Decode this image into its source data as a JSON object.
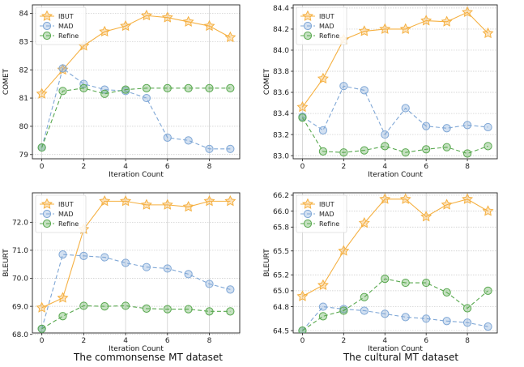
{
  "captions": {
    "left": "The commonsense MT dataset",
    "right": "The cultural MT dataset"
  },
  "colors": {
    "IBUT": "#f5b041",
    "MAD": "#7fa7d6",
    "Refine": "#58a84e"
  },
  "chart_data": [
    {
      "type": "line",
      "panel": "top-left",
      "xlabel": "Iteration Count",
      "ylabel": "COMET",
      "xlim": [
        -0.45,
        9.45
      ],
      "ylim": [
        78.85,
        84.3
      ],
      "xticks": [
        0,
        2,
        4,
        6,
        8
      ],
      "yticks": [
        79,
        80,
        81,
        82,
        83,
        84
      ],
      "legend": "top-left",
      "x": [
        0,
        1,
        2,
        3,
        4,
        5,
        6,
        7,
        8,
        9
      ],
      "series": [
        {
          "name": "IBUT",
          "values": [
            81.15,
            82.0,
            82.85,
            83.35,
            83.55,
            83.92,
            83.85,
            83.7,
            83.55,
            83.15
          ]
        },
        {
          "name": "MAD",
          "values": [
            79.25,
            82.05,
            81.5,
            81.3,
            81.25,
            81.0,
            79.6,
            79.5,
            79.2,
            79.2
          ]
        },
        {
          "name": "Refine",
          "values": [
            79.25,
            81.25,
            81.35,
            81.15,
            81.3,
            81.35,
            81.35,
            81.35,
            81.35,
            81.35
          ]
        }
      ]
    },
    {
      "type": "line",
      "panel": "top-right",
      "xlabel": "Iteration Count",
      "ylabel": "COMET",
      "xlim": [
        -0.45,
        9.45
      ],
      "ylim": [
        82.97,
        84.43
      ],
      "xticks": [
        0,
        2,
        4,
        6,
        8
      ],
      "yticks": [
        83.0,
        83.2,
        83.4,
        83.6,
        83.8,
        84.0,
        84.2,
        84.4
      ],
      "legend": "top-left",
      "x": [
        0,
        1,
        2,
        3,
        4,
        5,
        6,
        7,
        8,
        9
      ],
      "series": [
        {
          "name": "IBUT",
          "values": [
            83.46,
            83.73,
            84.1,
            84.18,
            84.2,
            84.2,
            84.28,
            84.27,
            84.36,
            84.16
          ]
        },
        {
          "name": "MAD",
          "values": [
            83.37,
            83.24,
            83.66,
            83.62,
            83.2,
            83.45,
            83.28,
            83.26,
            83.29,
            83.27
          ]
        },
        {
          "name": "Refine",
          "values": [
            83.36,
            83.04,
            83.03,
            83.05,
            83.09,
            83.03,
            83.06,
            83.08,
            83.02,
            83.09
          ]
        }
      ]
    },
    {
      "type": "line",
      "panel": "bottom-left",
      "xlabel": "Iteration Count",
      "ylabel": "BLEURT",
      "xlim": [
        -0.45,
        9.45
      ],
      "ylim": [
        68.05,
        73.05
      ],
      "xticks": [
        0,
        2,
        4,
        6,
        8
      ],
      "yticks": [
        68.0,
        69.0,
        70.0,
        71.0,
        72.0
      ],
      "legend": "top-left",
      "x": [
        0,
        1,
        2,
        3,
        4,
        5,
        6,
        7,
        8,
        9
      ],
      "series": [
        {
          "name": "IBUT",
          "values": [
            68.95,
            69.3,
            71.75,
            72.75,
            72.75,
            72.62,
            72.62,
            72.55,
            72.75,
            72.75
          ]
        },
        {
          "name": "MAD",
          "values": [
            68.2,
            70.85,
            70.8,
            70.75,
            70.55,
            70.4,
            70.35,
            70.15,
            69.8,
            69.6
          ]
        },
        {
          "name": "Refine",
          "values": [
            68.2,
            68.65,
            69.02,
            69.0,
            69.02,
            68.92,
            68.9,
            68.9,
            68.82,
            68.82
          ]
        }
      ]
    },
    {
      "type": "line",
      "panel": "bottom-right",
      "xlabel": "Iteration Count",
      "ylabel": "BLEURT",
      "xlim": [
        -0.45,
        9.45
      ],
      "ylim": [
        64.47,
        66.23
      ],
      "xticks": [
        0,
        2,
        4,
        6,
        8
      ],
      "yticks": [
        64.5,
        64.8,
        65.0,
        65.2,
        65.5,
        65.8,
        66.0,
        66.2
      ],
      "legend": "top-left",
      "x": [
        0,
        1,
        2,
        3,
        4,
        5,
        6,
        7,
        8,
        9
      ],
      "series": [
        {
          "name": "IBUT",
          "values": [
            64.93,
            65.07,
            65.5,
            65.85,
            66.15,
            66.15,
            65.93,
            66.08,
            66.15,
            66.0
          ]
        },
        {
          "name": "MAD",
          "values": [
            64.5,
            64.8,
            64.77,
            64.75,
            64.71,
            64.67,
            64.65,
            64.62,
            64.6,
            64.55
          ]
        },
        {
          "name": "Refine",
          "values": [
            64.5,
            64.68,
            64.75,
            64.92,
            65.15,
            65.1,
            65.1,
            64.98,
            64.78,
            65.0
          ]
        }
      ]
    }
  ]
}
